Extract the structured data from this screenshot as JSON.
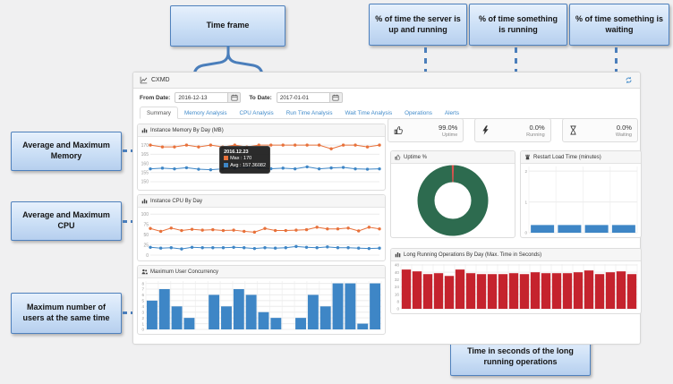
{
  "colors": {
    "callout_border": "#4f81bd",
    "connector_blue": "#4a7ebb",
    "link_blue": "#428bca",
    "series_orange": "#e8713a",
    "series_blue": "#3e86c6",
    "bar_red": "#c5232d",
    "donut_green": "#2d6b4f",
    "donut_red": "#d9534f"
  },
  "annotations": {
    "time_frame": "Time frame",
    "uptime_note": "% of time the server is up and running",
    "running_note": "% of time something is running",
    "waiting_note": "% of time something is waiting",
    "memory_note": "Average and Maximum Memory",
    "cpu_note": "Average and Maximum CPU",
    "users_note": "Maximum number of users at the same time",
    "long_running_note": "Time in seconds of the long running operations"
  },
  "dashboard": {
    "title": "CXMD",
    "from_date_label": "From Date:",
    "from_date": "2016-12-13",
    "to_date_label": "To Date:",
    "to_date": "2017-01-01",
    "tabs": [
      "Summary",
      "Memory Analysis",
      "CPU Analysis",
      "Run Time Analysis",
      "Wait Time Analysis",
      "Operations",
      "Alerts"
    ],
    "active_tab": "Summary",
    "stats": [
      {
        "icon": "thumbs-up-icon",
        "value": "99.0%",
        "label": "Uptime"
      },
      {
        "icon": "lightning-icon",
        "value": "0.0%",
        "label": "Running"
      },
      {
        "icon": "hourglass-icon",
        "value": "0.0%",
        "label": "Waiting"
      }
    ]
  },
  "chart_data": [
    {
      "id": "memory",
      "type": "line",
      "title": "Instance Memory By Day (MB)",
      "ylim": [
        148.5,
        172.5
      ],
      "yticks": [
        170,
        165,
        160,
        155,
        150
      ],
      "grid": true,
      "legend": "none",
      "series": [
        {
          "name": "Max",
          "color": "#e8713a",
          "values": [
            170,
            169,
            169,
            170,
            169,
            170,
            169,
            170,
            169,
            170,
            170,
            170,
            170,
            170,
            170,
            168,
            170,
            170,
            169,
            170
          ]
        },
        {
          "name": "Avg",
          "color": "#3e86c6",
          "values": [
            157,
            157.4,
            157,
            157.6,
            156.8,
            156.5,
            157,
            157.4,
            158,
            157.7,
            157.1,
            157.4,
            157,
            158.1,
            157,
            157.5,
            157.8,
            157,
            156.8,
            157
          ]
        }
      ],
      "tooltip": {
        "date": "2016.12.23",
        "rows": [
          {
            "color": "#e8713a",
            "label": "Max : 170"
          },
          {
            "color": "#3e86c6",
            "label": "Avg : 157.36082"
          }
        ]
      }
    },
    {
      "id": "cpu",
      "type": "line",
      "title": "Instance CPU By Day",
      "ylim": [
        0,
        107
      ],
      "yticks": [
        100,
        75,
        50,
        25,
        0
      ],
      "grid": true,
      "legend": "none",
      "series": [
        {
          "name": "Max",
          "color": "#e8713a",
          "values": [
            65,
            58,
            66,
            60,
            63,
            61,
            62,
            60,
            61,
            58,
            56,
            65,
            60,
            60,
            61,
            62,
            68,
            64,
            64,
            66,
            59,
            68,
            64
          ]
        },
        {
          "name": "Avg",
          "color": "#3e86c6",
          "values": [
            19,
            17,
            18,
            15,
            19,
            18,
            18,
            18,
            19,
            18,
            16,
            18,
            17,
            18,
            21,
            19,
            18,
            20,
            18,
            18,
            17,
            16,
            17
          ]
        }
      ]
    },
    {
      "id": "concurrency",
      "type": "bar",
      "title": "Maximum User Concurrency",
      "ylim": [
        0,
        8.4
      ],
      "yticks": [
        8,
        7,
        6,
        5,
        4,
        3,
        2,
        1,
        0
      ],
      "grid": true,
      "color": "#3e86c6",
      "values": [
        5,
        7,
        4,
        2,
        null,
        6,
        4,
        7,
        6,
        3,
        2,
        null,
        2,
        6,
        4,
        8,
        8,
        1,
        8
      ]
    },
    {
      "id": "uptime",
      "type": "pie",
      "title": "Uptime %",
      "slices": [
        {
          "label": "Up",
          "value": 99,
          "color": "#2d6b4f"
        },
        {
          "label": "Down",
          "value": 1,
          "color": "#d9534f"
        }
      ]
    },
    {
      "id": "restart",
      "type": "bar",
      "title": "Restart Load Time (minutes)",
      "ylim": [
        0,
        2.15
      ],
      "yticks": [
        2,
        1,
        0
      ],
      "grid": true,
      "color": "#3e86c6",
      "values": [
        0.25,
        0.25,
        0.25,
        0.25
      ]
    },
    {
      "id": "lro",
      "type": "bar",
      "title": "Long Running Operations By Day (Max. Time in Seconds)",
      "ylim": [
        0,
        49
      ],
      "yticks": [
        48,
        40,
        32,
        24,
        16,
        8,
        0
      ],
      "grid": true,
      "color": "#c5232d",
      "values": [
        43,
        41,
        38,
        39,
        36,
        43,
        39,
        38,
        38,
        38,
        39,
        38,
        40,
        39,
        39,
        39,
        40,
        42,
        38,
        40,
        41,
        38
      ]
    }
  ]
}
